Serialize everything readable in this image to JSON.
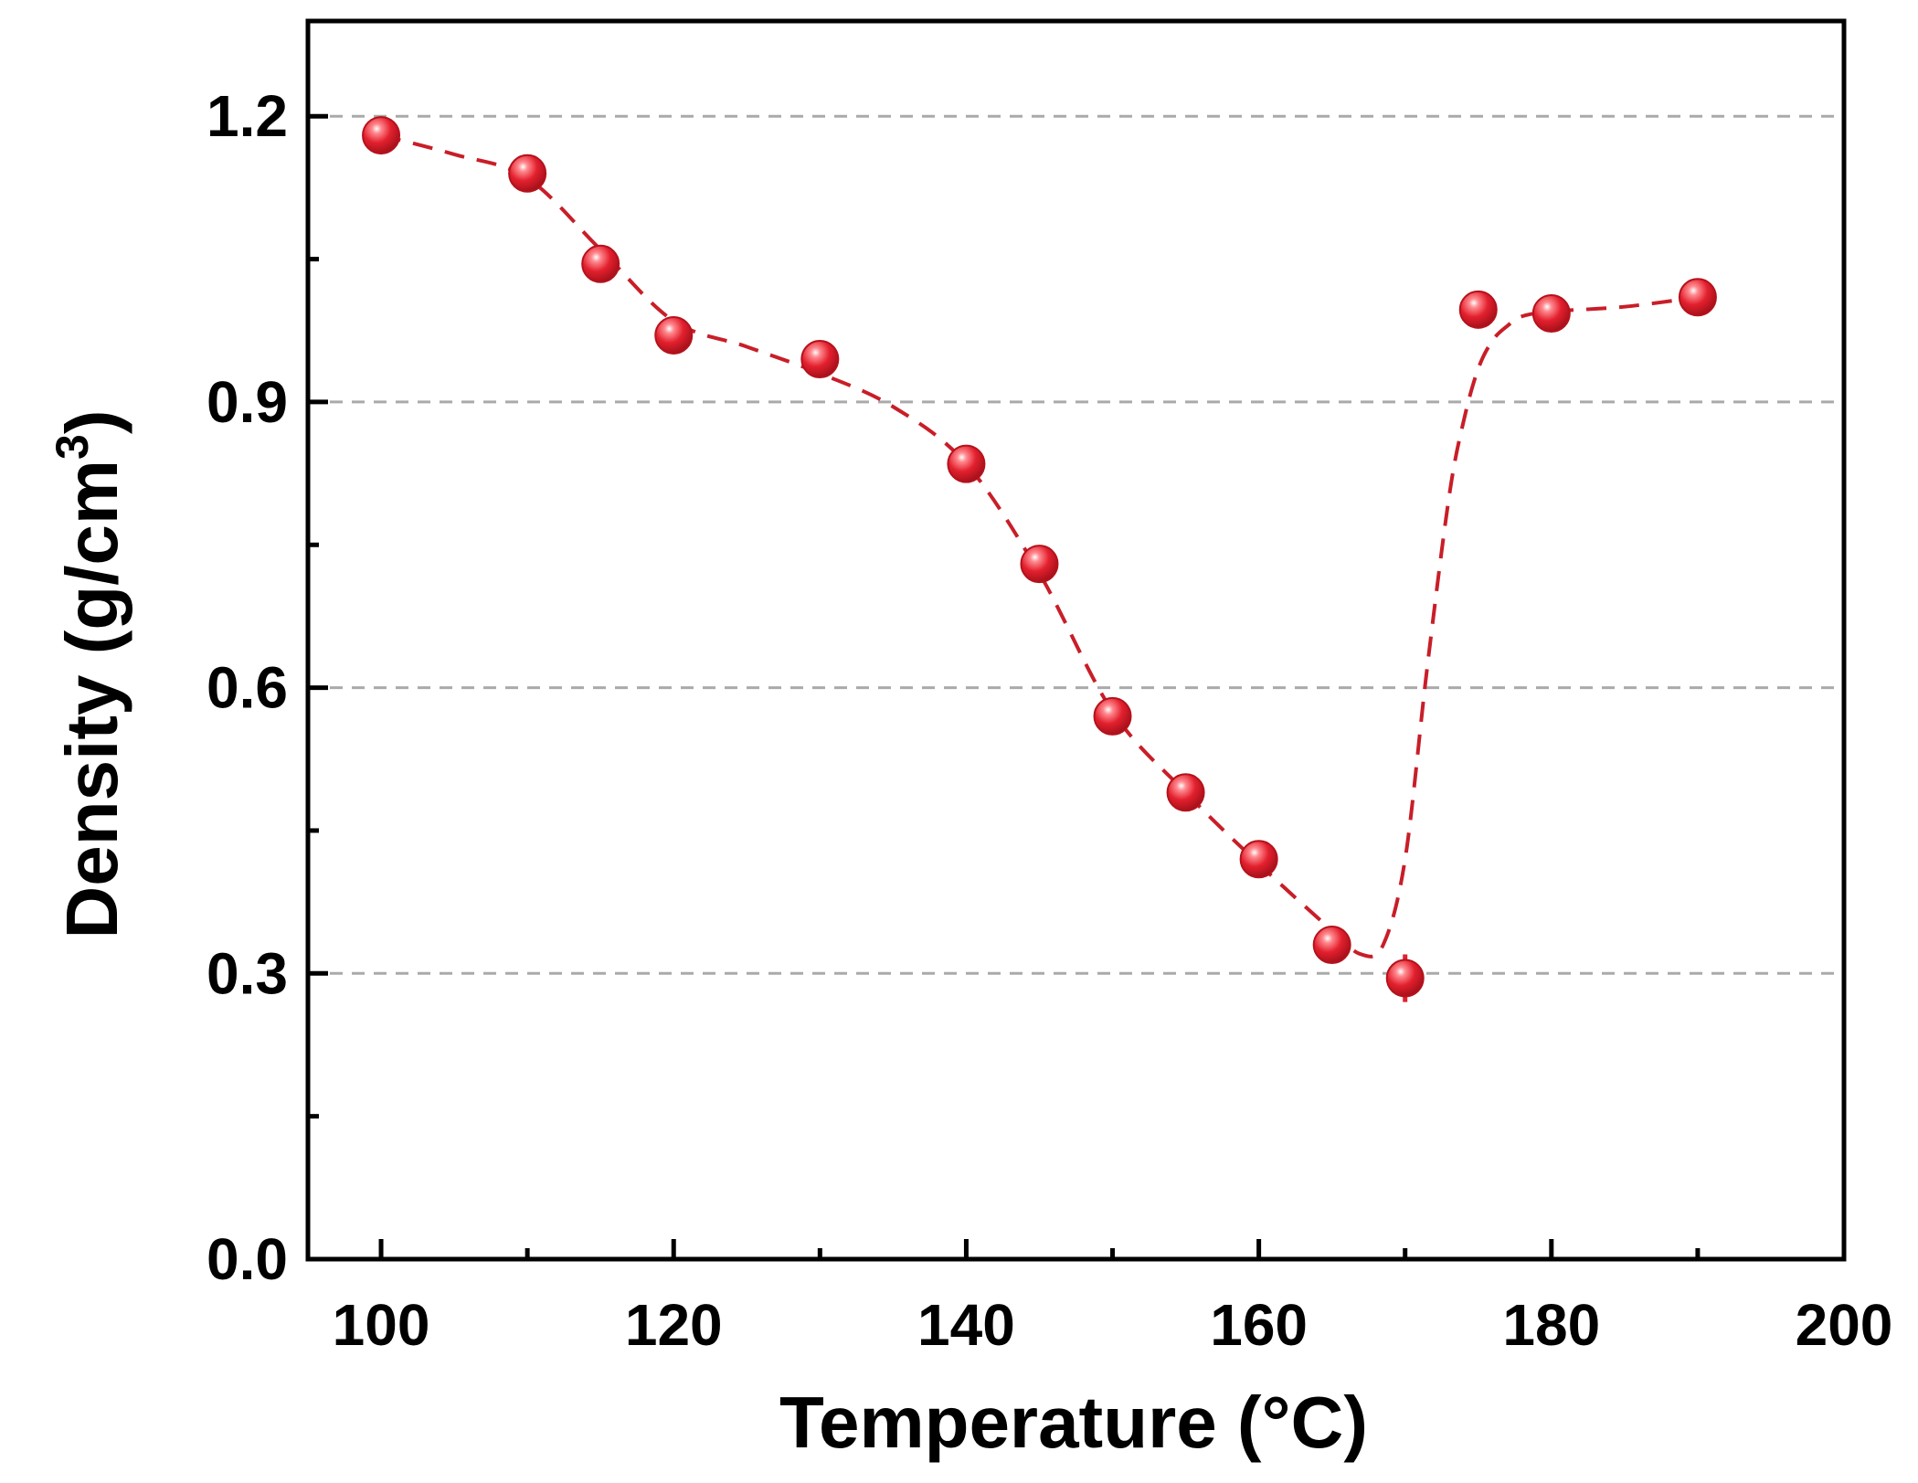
{
  "chart_data": {
    "type": "scatter",
    "title": "",
    "xlabel": "Temperature (°C)",
    "ylabel_main": "Density (g/cm",
    "ylabel_sup": "3",
    "ylabel_close": ")",
    "xlim": [
      95,
      200
    ],
    "ylim": [
      0,
      1.3
    ],
    "xticks": [
      100,
      120,
      140,
      160,
      180,
      200
    ],
    "xtick_labels": [
      "100",
      "120",
      "140",
      "160",
      "180",
      "200"
    ],
    "x_minor_ticks": [
      110,
      130,
      150,
      170,
      190
    ],
    "yticks": [
      0.0,
      0.3,
      0.6,
      0.9,
      1.2
    ],
    "ytick_labels": [
      "0.0",
      "0.3",
      "0.6",
      "0.9",
      "1.2"
    ],
    "y_minor_ticks": [
      0.15,
      0.45,
      0.75,
      1.05
    ],
    "gridlines_y": [
      0.3,
      0.6,
      0.9,
      1.2
    ],
    "grid": "horizontal dashed at major y ticks",
    "marker_color": "#e3202e",
    "line_color": "#c81e28",
    "grid_color": "#aaaaaa",
    "series": [
      {
        "name": "Density",
        "x": [
          100,
          110,
          115,
          120,
          130,
          140,
          145,
          150,
          155,
          160,
          165,
          170,
          175,
          180,
          190
        ],
        "y": [
          1.18,
          1.14,
          1.045,
          0.97,
          0.945,
          0.835,
          0.73,
          0.57,
          0.49,
          0.42,
          0.33,
          0.295,
          0.997,
          0.993,
          1.01
        ],
        "error": [
          0.01,
          0.01,
          0.01,
          0.01,
          0.01,
          0.01,
          0.01,
          0.01,
          0.01,
          0.01,
          0.01,
          0.025,
          0.01,
          0.01,
          0.01
        ]
      }
    ],
    "trend_line": {
      "style": "dashed",
      "x": [
        100,
        105,
        110,
        115,
        120,
        125,
        130,
        135,
        140,
        145,
        150,
        155,
        160,
        165,
        167,
        168.5,
        170,
        171.5,
        173,
        174,
        175,
        176,
        177,
        178,
        180,
        185,
        190
      ],
      "y": [
        1.18,
        1.16,
        1.135,
        1.06,
        0.985,
        0.958,
        0.93,
        0.895,
        0.835,
        0.72,
        0.575,
        0.49,
        0.415,
        0.345,
        0.32,
        0.33,
        0.42,
        0.62,
        0.8,
        0.88,
        0.935,
        0.965,
        0.98,
        0.99,
        0.995,
        1.0,
        1.01
      ]
    }
  }
}
